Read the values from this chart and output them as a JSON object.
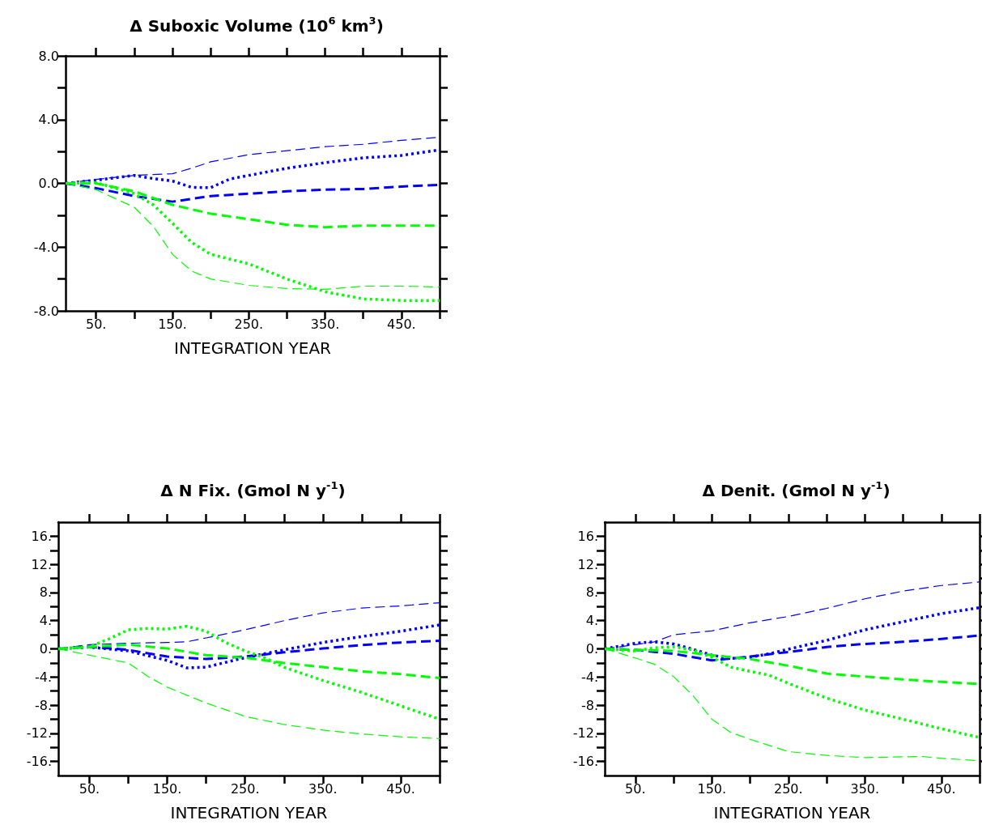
{
  "chart_data": [
    {
      "type": "line",
      "title": "Δ Suboxic Volume (10$^{6}$ km$^{3}$)",
      "xlabel": "INTEGRATION YEAR",
      "xlim": [
        10,
        500
      ],
      "xticks": [
        {
          "value": 50,
          "label": "50."
        },
        {
          "value": 100,
          "label": null
        },
        {
          "value": 150,
          "label": "150."
        },
        {
          "value": 200,
          "label": null
        },
        {
          "value": 250,
          "label": "250."
        },
        {
          "value": 300,
          "label": null
        },
        {
          "value": 350,
          "label": "350."
        },
        {
          "value": 400,
          "label": null
        },
        {
          "value": 450,
          "label": "450."
        },
        {
          "value": 500,
          "label": null
        }
      ],
      "ylim": [
        -8,
        8
      ],
      "yticks": [
        {
          "value": -8,
          "label": "-8.0"
        },
        {
          "value": -6,
          "label": null
        },
        {
          "value": -4,
          "label": "-4.0"
        },
        {
          "value": -2,
          "label": null
        },
        {
          "value": 0,
          "label": "0.0"
        },
        {
          "value": 2,
          "label": null
        },
        {
          "value": 4,
          "label": "4.0"
        },
        {
          "value": 6,
          "label": null
        },
        {
          "value": 8,
          "label": "8.0"
        }
      ],
      "grid": false,
      "series": [
        {
          "color": "#0000ff",
          "line_style": "dashed",
          "x": [
            10,
            50,
            100,
            150,
            175,
            200,
            250,
            300,
            350,
            400,
            450,
            500
          ],
          "values": [
            0,
            0.25,
            0.5,
            0.6,
            0.95,
            1.35,
            1.8,
            2.05,
            2.3,
            2.45,
            2.7,
            2.9
          ]
        },
        {
          "color": "#0000ff",
          "line_style": "dotted",
          "x": [
            10,
            50,
            100,
            125,
            150,
            175,
            200,
            225,
            250,
            300,
            350,
            400,
            450,
            500
          ],
          "values": [
            0,
            0.2,
            0.5,
            0.3,
            0.15,
            -0.25,
            -0.27,
            0.27,
            0.5,
            0.95,
            1.3,
            1.6,
            1.75,
            2.1
          ]
        },
        {
          "color": "#0000ff",
          "line_style": "dashed",
          "x": [
            10,
            50,
            100,
            150,
            200,
            250,
            300,
            350,
            400,
            450,
            500
          ],
          "values": [
            0,
            -0.3,
            -0.8,
            -1.15,
            -0.8,
            -0.65,
            -0.5,
            -0.4,
            -0.35,
            -0.2,
            -0.1
          ]
        },
        {
          "color": "#00ff00",
          "line_style": "dashed",
          "x": [
            10,
            50,
            100,
            150,
            200,
            250,
            300,
            350,
            400,
            450,
            500
          ],
          "values": [
            0,
            0,
            -0.5,
            -1.35,
            -1.9,
            -2.25,
            -2.6,
            -2.75,
            -2.65,
            -2.65,
            -2.65
          ]
        },
        {
          "color": "#00ff00",
          "line_style": "dotted",
          "x": [
            10,
            50,
            100,
            125,
            150,
            175,
            200,
            250,
            300,
            350,
            400,
            450,
            500
          ],
          "values": [
            0,
            0.05,
            -0.65,
            -1.35,
            -2.5,
            -3.7,
            -4.45,
            -5.05,
            -6.0,
            -6.8,
            -7.25,
            -7.35,
            -7.35
          ]
        },
        {
          "color": "#00ff00",
          "line_style": "dashed",
          "x": [
            10,
            50,
            100,
            125,
            150,
            175,
            200,
            250,
            300,
            350,
            400,
            450,
            500
          ],
          "values": [
            0,
            -0.4,
            -1.5,
            -2.7,
            -4.45,
            -5.5,
            -6.0,
            -6.4,
            -6.6,
            -6.65,
            -6.45,
            -6.45,
            -6.5
          ]
        }
      ]
    },
    {
      "type": "line",
      "title": "Δ N Fix. (Gmol N y$^{-1}$)",
      "xlabel": "INTEGRATION YEAR",
      "xlim": [
        10,
        500
      ],
      "xticks": [
        {
          "value": 50,
          "label": "50."
        },
        {
          "value": 100,
          "label": null
        },
        {
          "value": 150,
          "label": "150."
        },
        {
          "value": 200,
          "label": null
        },
        {
          "value": 250,
          "label": "250."
        },
        {
          "value": 300,
          "label": null
        },
        {
          "value": 350,
          "label": "350."
        },
        {
          "value": 400,
          "label": null
        },
        {
          "value": 450,
          "label": "450."
        },
        {
          "value": 500,
          "label": null
        }
      ],
      "ylim": [
        -18,
        18
      ],
      "yticks": [
        {
          "value": -16,
          "label": "-16."
        },
        {
          "value": -14,
          "label": null
        },
        {
          "value": -12,
          "label": "-12."
        },
        {
          "value": -10,
          "label": null
        },
        {
          "value": -8,
          "label": "-8."
        },
        {
          "value": -6,
          "label": null
        },
        {
          "value": -4,
          "label": "-4."
        },
        {
          "value": -2,
          "label": null
        },
        {
          "value": 0,
          "label": "0."
        },
        {
          "value": 2,
          "label": null
        },
        {
          "value": 4,
          "label": "4."
        },
        {
          "value": 6,
          "label": null
        },
        {
          "value": 8,
          "label": "8."
        },
        {
          "value": 10,
          "label": null
        },
        {
          "value": 12,
          "label": "12."
        },
        {
          "value": 14,
          "label": null
        },
        {
          "value": 16,
          "label": "16."
        }
      ],
      "grid": false,
      "series": [
        {
          "color": "#0000ff",
          "line_style": "dashed",
          "x": [
            10,
            50,
            100,
            150,
            175,
            200,
            250,
            300,
            350,
            400,
            450,
            500
          ],
          "values": [
            0,
            0.6,
            0.8,
            0.9,
            1.0,
            1.55,
            2.7,
            4.0,
            5.1,
            5.8,
            6.1,
            6.55
          ]
        },
        {
          "color": "#0000ff",
          "line_style": "dotted",
          "x": [
            10,
            50,
            100,
            150,
            175,
            200,
            250,
            300,
            350,
            400,
            450,
            500
          ],
          "values": [
            0,
            0.25,
            -0.3,
            -1.65,
            -2.7,
            -2.6,
            -1.25,
            -0.15,
            0.9,
            1.75,
            2.5,
            3.4
          ]
        },
        {
          "color": "#0000ff",
          "line_style": "dashed",
          "x": [
            10,
            50,
            100,
            150,
            200,
            250,
            300,
            350,
            400,
            450,
            500
          ],
          "values": [
            0,
            0.3,
            -0.15,
            -1.1,
            -1.45,
            -1.1,
            -0.5,
            0.05,
            0.55,
            0.9,
            1.15
          ]
        },
        {
          "color": "#00ff00",
          "line_style": "dashed",
          "x": [
            10,
            50,
            100,
            150,
            200,
            250,
            300,
            350,
            400,
            450,
            500
          ],
          "values": [
            0,
            0.25,
            0.6,
            0.05,
            -0.9,
            -1.25,
            -2.0,
            -2.6,
            -3.2,
            -3.6,
            -4.15
          ]
        },
        {
          "color": "#00ff00",
          "line_style": "dotted",
          "x": [
            10,
            50,
            75,
            100,
            125,
            150,
            175,
            200,
            225,
            250,
            275,
            300,
            350,
            400,
            450,
            500
          ],
          "values": [
            0,
            0.3,
            1.4,
            2.7,
            2.9,
            2.8,
            3.2,
            2.5,
            0.9,
            -0.3,
            -1.25,
            -2.6,
            -4.5,
            -6.2,
            -8.1,
            -10.0
          ]
        },
        {
          "color": "#00ff00",
          "line_style": "dashed",
          "x": [
            10,
            50,
            100,
            125,
            150,
            200,
            250,
            300,
            350,
            400,
            450,
            500
          ],
          "values": [
            0,
            -0.9,
            -2.0,
            -3.9,
            -5.45,
            -7.7,
            -9.6,
            -10.75,
            -11.55,
            -12.1,
            -12.5,
            -12.75
          ]
        }
      ]
    },
    {
      "type": "line",
      "title": "Δ Denit. (Gmol N y$^{-1}$)",
      "xlabel": "INTEGRATION YEAR",
      "xlim": [
        10,
        500
      ],
      "xticks": [
        {
          "value": 50,
          "label": "50."
        },
        {
          "value": 100,
          "label": null
        },
        {
          "value": 150,
          "label": "150."
        },
        {
          "value": 200,
          "label": null
        },
        {
          "value": 250,
          "label": "250."
        },
        {
          "value": 300,
          "label": null
        },
        {
          "value": 350,
          "label": "350."
        },
        {
          "value": 400,
          "label": null
        },
        {
          "value": 450,
          "label": "450."
        },
        {
          "value": 500,
          "label": null
        }
      ],
      "ylim": [
        -18,
        18
      ],
      "yticks": [
        {
          "value": -16,
          "label": "-16."
        },
        {
          "value": -14,
          "label": null
        },
        {
          "value": -12,
          "label": "-12."
        },
        {
          "value": -10,
          "label": null
        },
        {
          "value": -8,
          "label": "-8."
        },
        {
          "value": -6,
          "label": null
        },
        {
          "value": -4,
          "label": "-4."
        },
        {
          "value": -2,
          "label": null
        },
        {
          "value": 0,
          "label": "0."
        },
        {
          "value": 2,
          "label": null
        },
        {
          "value": 4,
          "label": "4."
        },
        {
          "value": 6,
          "label": null
        },
        {
          "value": 8,
          "label": "8."
        },
        {
          "value": 10,
          "label": null
        },
        {
          "value": 12,
          "label": "12."
        },
        {
          "value": 14,
          "label": null
        },
        {
          "value": 16,
          "label": "16."
        }
      ],
      "grid": false,
      "series": [
        {
          "color": "#0000ff",
          "line_style": "dashed",
          "x": [
            10,
            50,
            75,
            100,
            150,
            200,
            250,
            300,
            350,
            400,
            450,
            500
          ],
          "values": [
            0,
            0.6,
            1.0,
            2.0,
            2.55,
            3.7,
            4.6,
            5.75,
            7.1,
            8.2,
            9.0,
            9.5
          ]
        },
        {
          "color": "#0000ff",
          "line_style": "dotted",
          "x": [
            10,
            50,
            75,
            100,
            125,
            150,
            175,
            200,
            225,
            250,
            300,
            350,
            400,
            450,
            500
          ],
          "values": [
            0,
            0.8,
            1.0,
            0.7,
            -0.05,
            -0.9,
            -1.35,
            -1.2,
            -0.7,
            -0.05,
            1.2,
            2.7,
            3.85,
            5.0,
            5.85
          ]
        },
        {
          "color": "#0000ff",
          "line_style": "dashed",
          "x": [
            10,
            50,
            100,
            150,
            200,
            250,
            300,
            350,
            400,
            450,
            500
          ],
          "values": [
            0,
            -0.15,
            -0.7,
            -1.65,
            -1.1,
            -0.45,
            0.25,
            0.7,
            1.0,
            1.4,
            1.9
          ]
        },
        {
          "color": "#00ff00",
          "line_style": "dashed",
          "x": [
            10,
            50,
            100,
            150,
            200,
            250,
            300,
            350,
            400,
            450,
            500
          ],
          "values": [
            0,
            -0.15,
            -0.3,
            -0.9,
            -1.45,
            -2.4,
            -3.5,
            -3.95,
            -4.35,
            -4.7,
            -5.0
          ]
        },
        {
          "color": "#00ff00",
          "line_style": "dotted",
          "x": [
            10,
            50,
            75,
            100,
            125,
            150,
            175,
            200,
            225,
            250,
            300,
            350,
            400,
            450,
            500
          ],
          "values": [
            0,
            -0.3,
            0.15,
            0.3,
            -0.15,
            -1.2,
            -2.6,
            -3.2,
            -3.75,
            -4.9,
            -7.0,
            -8.7,
            -10.0,
            -11.35,
            -12.6
          ]
        },
        {
          "color": "#00ff00",
          "line_style": "dashed",
          "x": [
            10,
            50,
            75,
            100,
            125,
            150,
            175,
            200,
            250,
            300,
            350,
            400,
            425,
            450,
            500
          ],
          "values": [
            0,
            -1.3,
            -2.2,
            -3.95,
            -6.6,
            -10.0,
            -11.9,
            -12.85,
            -14.6,
            -15.15,
            -15.45,
            -15.35,
            -15.3,
            -15.55,
            -15.9
          ]
        }
      ]
    }
  ]
}
